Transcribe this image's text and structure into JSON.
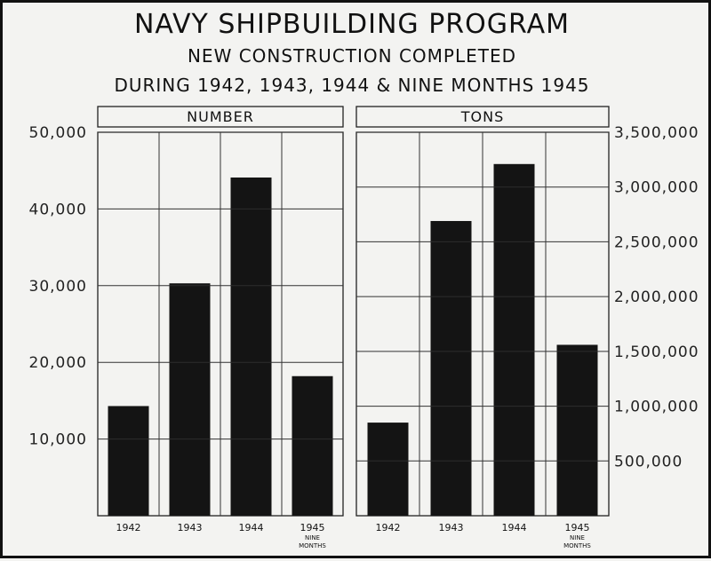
{
  "title": "NAVY SHIPBUILDING PROGRAM",
  "subtitle_1": "NEW CONSTRUCTION COMPLETED",
  "subtitle_2": "DURING 1942, 1943, 1944 & NINE MONTHS 1945",
  "chart_data": [
    {
      "type": "bar",
      "panel_label": "NUMBER",
      "categories": [
        "1942",
        "1943",
        "1944",
        "1945"
      ],
      "category_notes": [
        "",
        "",
        "",
        "NINE MONTHS"
      ],
      "values": [
        14300,
        30300,
        44100,
        18200
      ],
      "ylim": [
        0,
        50000
      ],
      "yticks": [
        10000,
        20000,
        30000,
        40000,
        50000
      ],
      "ytick_labels": [
        "10,000",
        "20,000",
        "30,000",
        "40,000",
        "50,000"
      ],
      "axis_side": "left",
      "grid": true
    },
    {
      "type": "bar",
      "panel_label": "TONS",
      "categories": [
        "1942",
        "1943",
        "1944",
        "1945"
      ],
      "category_notes": [
        "",
        "",
        "",
        "NINE MONTHS"
      ],
      "values": [
        850000,
        2690000,
        3210000,
        1560000
      ],
      "ylim": [
        0,
        3500000
      ],
      "yticks": [
        500000,
        1000000,
        1500000,
        2000000,
        2500000,
        3000000,
        3500000
      ],
      "ytick_labels": [
        "500,000",
        "1,000,000",
        "1,500,000",
        "2,000,000",
        "2,500,000",
        "3,000,000",
        "3,500,000"
      ],
      "axis_side": "right",
      "grid": true
    }
  ]
}
